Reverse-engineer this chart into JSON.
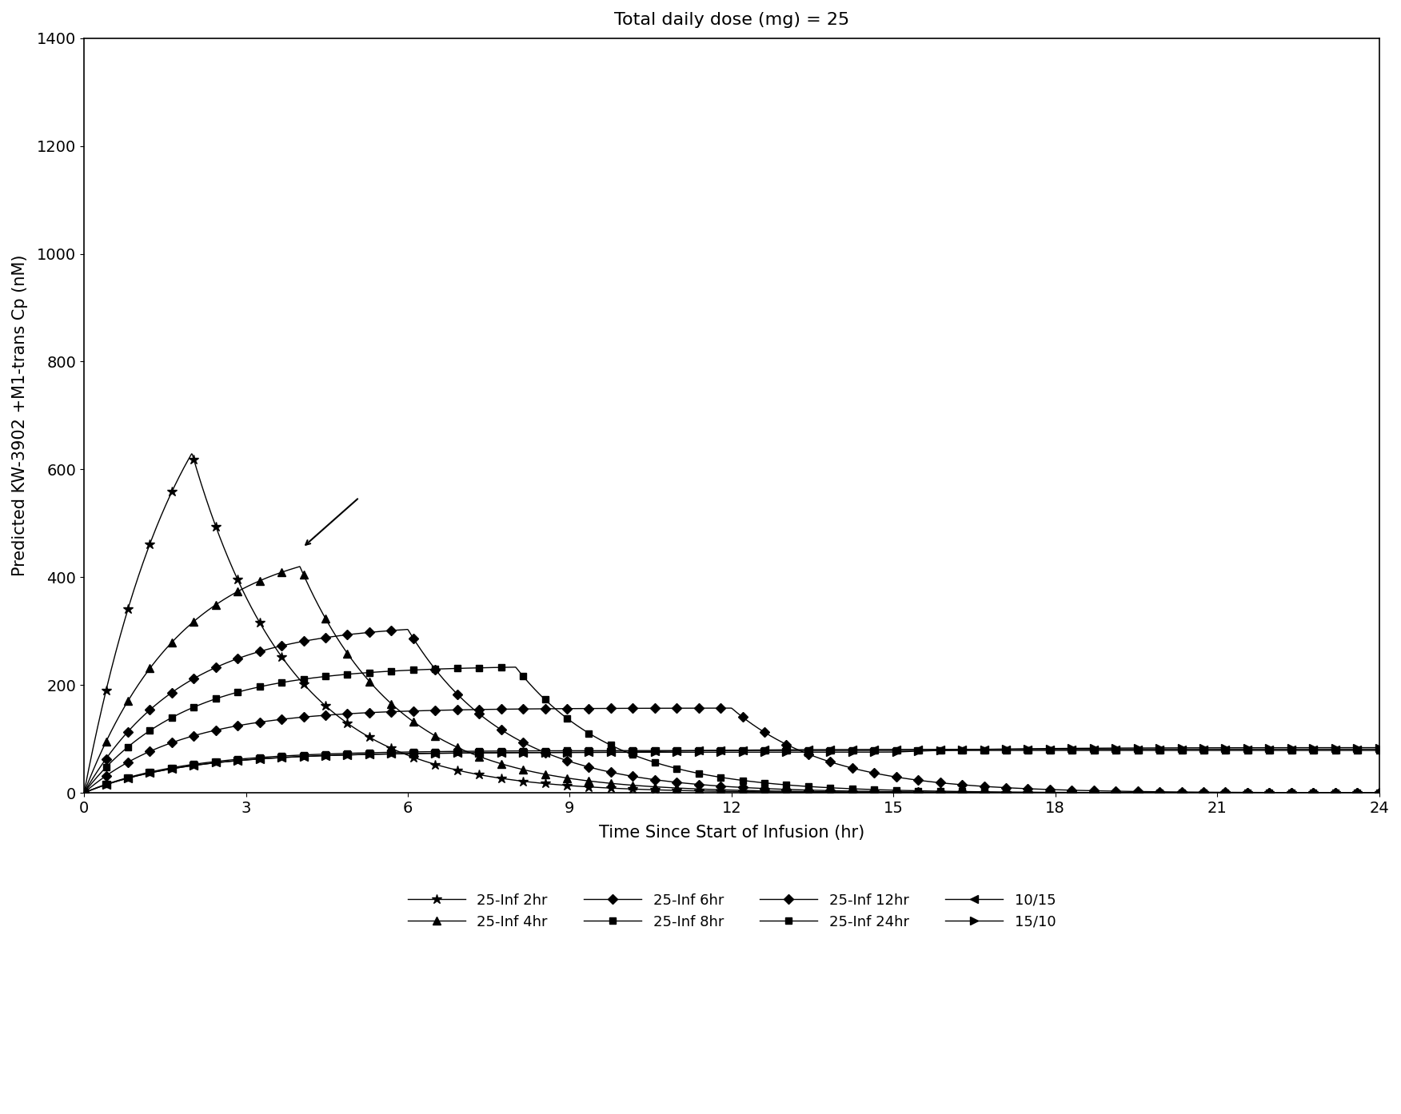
{
  "title": "Total daily dose (mg) = 25",
  "xlabel": "Time Since Start of Infusion (hr)",
  "ylabel": "Predicted KW-3902 +M1-trans Cp (nM)",
  "xlim": [
    0,
    24
  ],
  "ylim": [
    0,
    1400
  ],
  "xticks": [
    0,
    3,
    6,
    9,
    12,
    15,
    18,
    21,
    24
  ],
  "yticks": [
    0,
    200,
    400,
    600,
    800,
    1000,
    1200,
    1400
  ],
  "title_fontsize": 16,
  "label_fontsize": 15,
  "tick_fontsize": 14,
  "legend_fontsize": 13,
  "arrow": {
    "x_tail": 5.1,
    "y_tail": 548,
    "x_head": 4.05,
    "y_head": 455
  },
  "series": [
    {
      "label": "25-Inf 2hr",
      "type": "inf",
      "dose": 25,
      "dur": 2,
      "ke": 0.55,
      "marker": "*",
      "ms": 9
    },
    {
      "label": "25-Inf 4hr",
      "type": "inf",
      "dose": 25,
      "dur": 4,
      "ke": 0.55,
      "marker": "^",
      "ms": 7
    },
    {
      "label": "25-Inf 6hr",
      "type": "inf",
      "dose": 25,
      "dur": 6,
      "ke": 0.55,
      "marker": "D",
      "ms": 6
    },
    {
      "label": "25-Inf 8hr",
      "type": "inf",
      "dose": 25,
      "dur": 8,
      "ke": 0.55,
      "marker": "s",
      "ms": 6
    },
    {
      "label": "25-Inf 12hr",
      "type": "inf",
      "dose": 25,
      "dur": 12,
      "ke": 0.55,
      "marker": "D",
      "ms": 6
    },
    {
      "label": "25-Inf 24hr",
      "type": "inf",
      "dose": 25,
      "dur": 24,
      "ke": 0.55,
      "marker": "s",
      "ms": 6
    },
    {
      "label": "10/15",
      "type": "seq",
      "d1": 10,
      "dur1": 10,
      "d2": 15,
      "dur2": 14,
      "ke": 0.55,
      "marker": "<",
      "ms": 7
    },
    {
      "label": "15/10",
      "type": "seq",
      "d1": 15,
      "dur1": 15,
      "d2": 10,
      "dur2": 9,
      "ke": 0.55,
      "marker": ">",
      "ms": 7
    }
  ],
  "legend_entries": [
    {
      "label": "25-Inf 2hr",
      "marker": "*",
      "ms": 9
    },
    {
      "label": "25-Inf 4hr",
      "marker": "^",
      "ms": 7
    },
    {
      "label": "25-Inf 6hr",
      "marker": "D",
      "ms": 6
    },
    {
      "label": "25-Inf 8hr",
      "marker": "s",
      "ms": 6
    },
    {
      "label": "25-Inf 12hr",
      "marker": "D",
      "ms": 6
    },
    {
      "label": "25-Inf 24hr",
      "marker": "s",
      "ms": 6
    },
    {
      "label": "10/15",
      "marker": "<",
      "ms": 7
    },
    {
      "label": "15/10",
      "marker": ">",
      "ms": 7
    }
  ]
}
